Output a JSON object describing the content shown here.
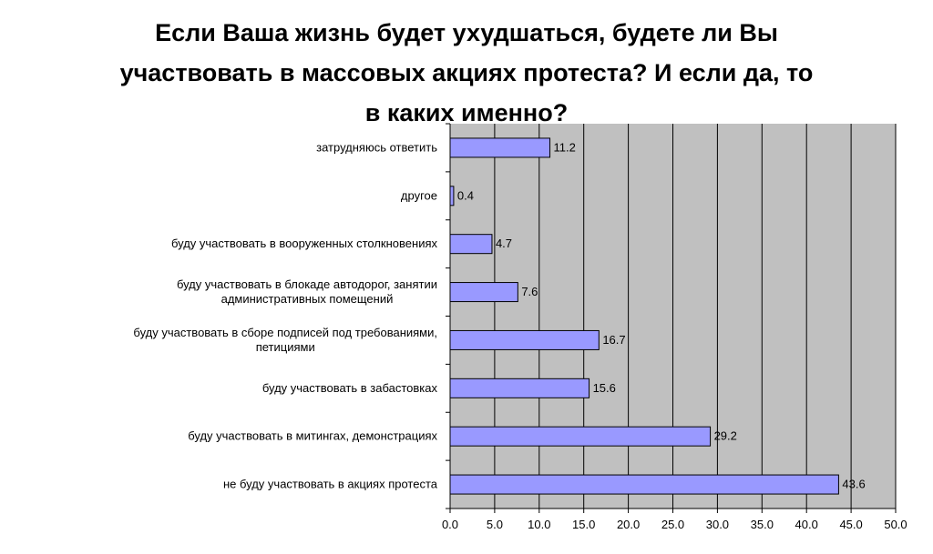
{
  "chart_data": {
    "type": "bar",
    "orientation": "horizontal",
    "title_lines": [
      "Если Ваша жизнь будет ухудшаться, будете ли Вы",
      "участвовать в массовых акциях протеста? И если да, то",
      "в каких именно?"
    ],
    "categories": [
      [
        "затрудняюсь ответить"
      ],
      [
        "другое"
      ],
      [
        "буду участвовать в вооруженных столкновениях"
      ],
      [
        "буду участвовать в блокаде автодорог, занятии",
        "административных помещений"
      ],
      [
        "буду участвовать в сборе подписей под требованиями,",
        "петициями"
      ],
      [
        "буду участвовать в забастовках"
      ],
      [
        "буду участвовать в митингах, демонстрациях"
      ],
      [
        "не буду участвовать в акциях протеста"
      ]
    ],
    "values": [
      11.2,
      0.4,
      4.7,
      7.6,
      16.7,
      15.6,
      29.2,
      43.6
    ],
    "value_labels": [
      "11.2",
      "0.4",
      "4.7",
      "7.6",
      "16.7",
      "15.6",
      "29.2",
      "43.6"
    ],
    "xlim": [
      0,
      50
    ],
    "x_ticks": [
      0,
      5,
      10,
      15,
      20,
      25,
      30,
      35,
      40,
      45,
      50
    ],
    "x_tick_labels": [
      "0.0",
      "5.0",
      "10.0",
      "15.0",
      "20.0",
      "25.0",
      "30.0",
      "35.0",
      "40.0",
      "45.0",
      "50.0"
    ],
    "grid": "vertical",
    "legend": "none",
    "colors": {
      "bar_fill": "#9999ff",
      "bar_stroke": "#000000",
      "plot_background": "#c0c0c0",
      "gridline": "#000000"
    }
  }
}
